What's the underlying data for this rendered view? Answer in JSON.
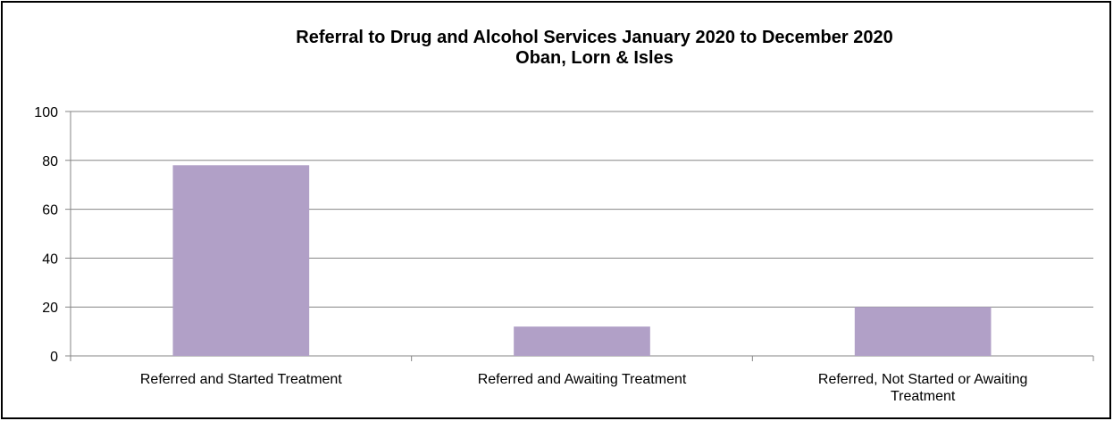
{
  "chart_data": {
    "type": "bar",
    "title": "Referral to Drug and Alcohol Services January 2020 to December 2020",
    "subtitle": "Oban, Lorn & Isles",
    "categories": [
      "Referred and Started Treatment",
      "Referred and Awaiting Treatment",
      "Referred, Not Started or Awaiting Treatment"
    ],
    "category_lines": [
      [
        "Referred and Started Treatment"
      ],
      [
        "Referred and Awaiting Treatment"
      ],
      [
        "Referred, Not Started or Awaiting",
        "Treatment"
      ]
    ],
    "values": [
      78,
      12,
      20
    ],
    "ylim": [
      0,
      100
    ],
    "yticks": [
      0,
      20,
      40,
      60,
      80,
      100
    ],
    "xlabel": "",
    "ylabel": "",
    "grid": true,
    "legend": "none",
    "colors": {
      "bar": "#b1a0c7",
      "grid": "#868686",
      "axis": "#868686",
      "text": "#000000"
    }
  }
}
